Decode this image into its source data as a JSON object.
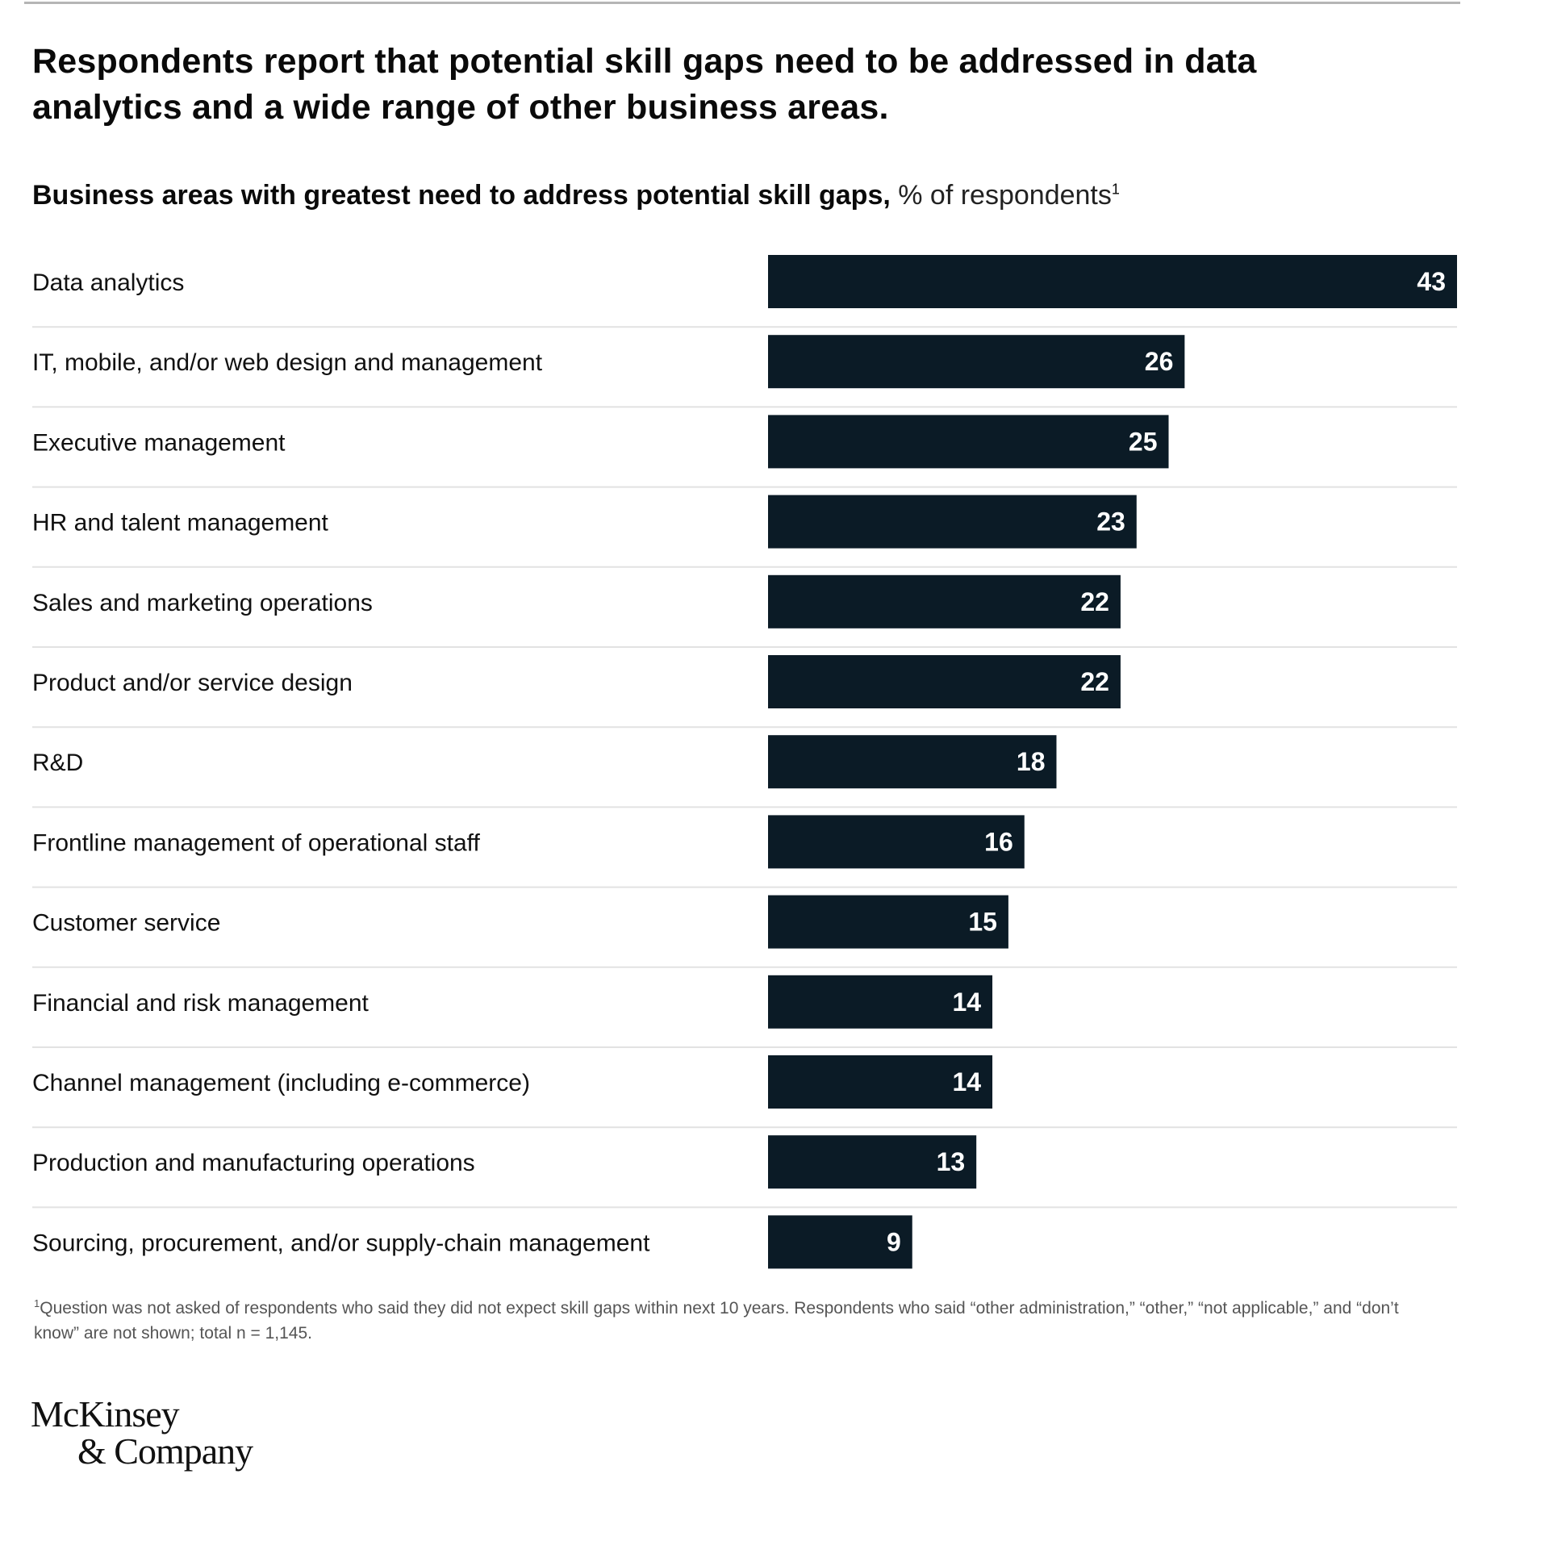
{
  "title": "Respondents report that potential skill gaps need to be addressed in data analytics and a wide range of other business areas.",
  "subtitle": {
    "bold": "Business areas with greatest need to address potential skill gaps,",
    "unit": "% of respondents",
    "footnote_marker": "1"
  },
  "footnote": {
    "marker": "1",
    "text": "Question was not asked of respondents who said they did not expect skill gaps within next 10 years. Respondents who said “other administration,” “other,” “not applicable,” and “don’t know” are not shown; total n = 1,145."
  },
  "logo": {
    "line1": "McKinsey",
    "line2": "& Company"
  },
  "colors": {
    "bar": "#0b1b26",
    "divider": "#e2e2e2"
  },
  "chart_data": {
    "type": "bar",
    "orientation": "horizontal",
    "title": "Respondents report that potential skill gaps need to be addressed in data analytics and a wide range of other business areas.",
    "subtitle": "Business areas with greatest need to address potential skill gaps, % of respondents",
    "categories": [
      "Data analytics",
      "IT, mobile, and/or web design and management",
      "Executive management",
      "HR and talent management",
      "Sales and marketing operations",
      "Product and/or service design",
      "R&D",
      "Frontline management of operational staff",
      "Customer service",
      "Financial and risk management",
      "Channel management (including e-commerce)",
      "Production and manufacturing operations",
      "Sourcing, procurement, and/or supply-chain management"
    ],
    "values": [
      43,
      26,
      25,
      23,
      22,
      22,
      18,
      16,
      15,
      14,
      14,
      13,
      9
    ],
    "xlim": [
      0,
      43
    ],
    "data_labels": true,
    "grid": false,
    "legend": "none"
  }
}
